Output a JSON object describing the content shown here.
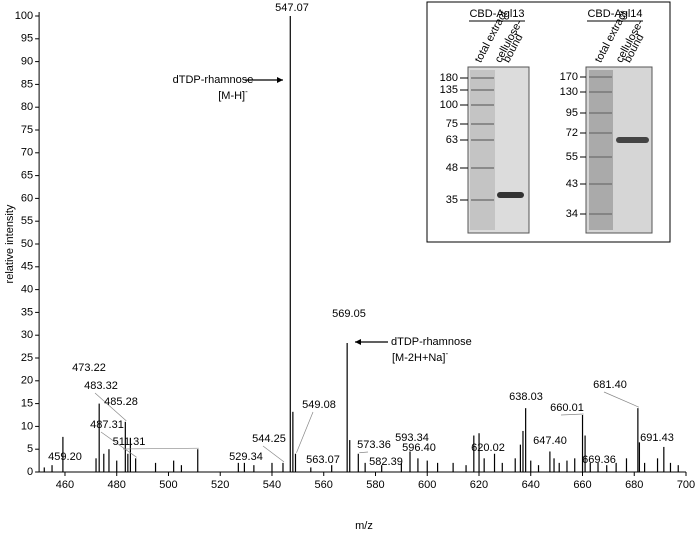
{
  "chart_data": {
    "type": "spectrum",
    "x_label": "m/z",
    "y_label": "relative intensity",
    "xlim": [
      450,
      700
    ],
    "ylim": [
      0,
      100
    ],
    "xticks": [
      460,
      480,
      500,
      520,
      540,
      560,
      580,
      600,
      620,
      640,
      660,
      680,
      700
    ],
    "yticks": [
      0,
      5,
      10,
      15,
      20,
      25,
      30,
      35,
      40,
      45,
      50,
      55,
      60,
      65,
      70,
      75,
      80,
      85,
      90,
      95,
      100
    ],
    "color": "#000000",
    "x": [
      452,
      455,
      459.2,
      472,
      473.22,
      475,
      477,
      480,
      483.32,
      484.3,
      485.28,
      487.31,
      495,
      502,
      505,
      511.31,
      527,
      529.34,
      533,
      540,
      544.25,
      547.07,
      548.07,
      549.08,
      555,
      563.07,
      569.05,
      570.05,
      573.36,
      576,
      582.39,
      590,
      593.34,
      596.4,
      600,
      604,
      610,
      615,
      618,
      620.02,
      622,
      626,
      629,
      634,
      636,
      637,
      638.03,
      640,
      643,
      647.4,
      649,
      651,
      654,
      657,
      660.01,
      661,
      663,
      666,
      669.36,
      673,
      677,
      681.4,
      682,
      684,
      689,
      691.43,
      694,
      697
    ],
    "values": [
      1,
      1.5,
      7.7,
      3,
      15,
      4,
      5,
      2.5,
      11,
      4,
      7.5,
      3,
      2,
      2.5,
      1.5,
      5,
      2,
      2,
      1.5,
      2,
      2,
      100,
      13.2,
      4,
      1,
      1.5,
      28.3,
      7,
      4,
      2,
      1.5,
      2,
      4.5,
      3,
      2.5,
      2,
      2,
      1.5,
      8,
      8.5,
      3,
      4,
      2,
      3,
      6,
      9,
      14,
      2.5,
      1.5,
      4.5,
      3,
      2,
      2.5,
      3,
      12.5,
      8,
      2,
      2,
      1.5,
      2,
      3,
      14,
      6.5,
      2,
      3,
      5.5,
      2,
      1.5
    ],
    "peak_labels": [
      null,
      null,
      "459.20",
      null,
      "473.22",
      null,
      null,
      null,
      "483.32",
      null,
      "485.28",
      "487.31",
      null,
      null,
      null,
      "511.31",
      null,
      "529.34",
      null,
      null,
      "544.25",
      "547.07",
      null,
      "549.08",
      null,
      "563.07",
      "569.05",
      null,
      "573.36",
      null,
      "582.39",
      null,
      "593.34",
      "596.40",
      null,
      null,
      null,
      null,
      null,
      "620.02",
      null,
      null,
      null,
      null,
      null,
      null,
      "638.03",
      null,
      null,
      "647.40",
      null,
      null,
      null,
      null,
      "660.01",
      null,
      null,
      null,
      "669.36",
      null,
      null,
      "681.40",
      null,
      null,
      null,
      "691.43",
      null,
      null
    ],
    "annotations": [
      {
        "lines": [
          "dTDP-rhamnose",
          "[M-H]"
        ],
        "superscript": "-"
      },
      {
        "lines": [
          "dTDP-rhamnose",
          "[M-2H+Na]"
        ],
        "superscript": "-"
      }
    ]
  },
  "inset": {
    "gels": [
      {
        "title": "CBD-Agl13",
        "lane_labels": [
          "total extract",
          "cellulose-",
          "bound"
        ],
        "markers": [
          180,
          135,
          100,
          75,
          63,
          48,
          35
        ]
      },
      {
        "title": "CBD-Agl14",
        "lane_labels": [
          "total extract",
          "cellulose-",
          "bound"
        ],
        "markers": [
          170,
          130,
          95,
          72,
          55,
          43,
          34
        ]
      }
    ]
  }
}
